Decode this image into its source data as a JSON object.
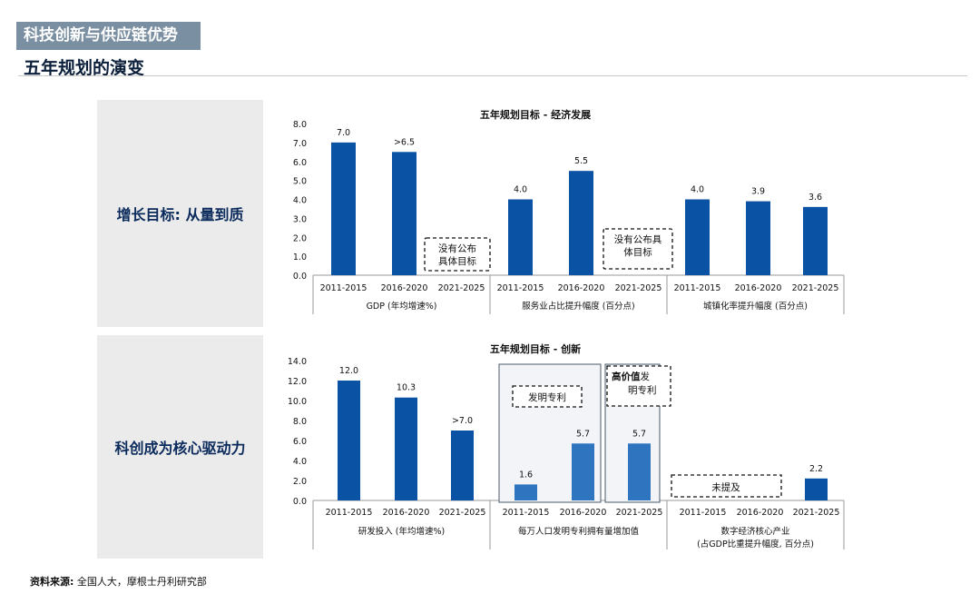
{
  "header": {
    "section_tag": "科技创新与供应链优势",
    "page_title": "五年规划的演变"
  },
  "panels": {
    "top_label": "增长目标: 从量到质",
    "bottom_label": "科创成为核心驱动力"
  },
  "source": {
    "label": "资料来源:",
    "text": " 全国人大，摩根士丹利研究部"
  },
  "colors": {
    "bar": "#0a52a3",
    "bar_light": "#2f74be",
    "text": "#111111"
  },
  "chart_data": [
    {
      "type": "bar",
      "title": "五年规划目标 - 经济发展",
      "ylim": [
        0,
        8
      ],
      "yticks": [
        "0.0",
        "1.0",
        "2.0",
        "3.0",
        "4.0",
        "5.0",
        "6.0",
        "7.0",
        "8.0"
      ],
      "groups": [
        {
          "label": "GDP (年均增速%)",
          "categories": [
            "2011-2015",
            "2016-2020",
            "2021-2025"
          ],
          "values": [
            7.0,
            6.5,
            null
          ],
          "data_labels": [
            "7.0",
            ">6.5",
            ""
          ],
          "note": "没有公布具体目标"
        },
        {
          "label": "服务业占比提升幅度 (百分点)",
          "categories": [
            "2011-2015",
            "2016-2020",
            "2021-2025"
          ],
          "values": [
            4.0,
            5.5,
            null
          ],
          "data_labels": [
            "4.0",
            "5.5",
            ""
          ],
          "note": "没有公布具体目标"
        },
        {
          "label": "城镇化率提升幅度 (百分点)",
          "categories": [
            "2011-2015",
            "2016-2020",
            "2021-2025"
          ],
          "values": [
            4.0,
            3.9,
            3.6
          ],
          "data_labels": [
            "4.0",
            "3.9",
            "3.6"
          ]
        }
      ]
    },
    {
      "type": "bar",
      "title": "五年规划目标 - 创新",
      "ylim": [
        0,
        14
      ],
      "yticks": [
        "0.0",
        "2.0",
        "4.0",
        "6.0",
        "8.0",
        "10.0",
        "12.0",
        "14.0"
      ],
      "groups": [
        {
          "label": "研发投入 (年均增速%)",
          "categories": [
            "2011-2015",
            "2016-2020",
            "2021-2025"
          ],
          "values": [
            12.0,
            10.3,
            7.0
          ],
          "data_labels": [
            "12.0",
            "10.3",
            ">7.0"
          ]
        },
        {
          "label": "每万人口发明专利拥有量增加值",
          "categories": [
            "2011-2015",
            "2016-2020",
            "2021-2025"
          ],
          "values": [
            1.6,
            5.7,
            5.7
          ],
          "data_labels": [
            "1.6",
            "5.7",
            "5.7"
          ],
          "note": "发明专利",
          "note2_bold": "高价值",
          "note2_rest": "发明专利"
        },
        {
          "label": "数字经济核心产业",
          "label2": "(占GDP比重提升幅度, 百分点)",
          "categories": [
            "2011-2015",
            "2016-2020",
            "2021-2025"
          ],
          "values": [
            null,
            null,
            2.2
          ],
          "data_labels": [
            "",
            "",
            "2.2"
          ],
          "note": "未提及"
        }
      ]
    }
  ]
}
